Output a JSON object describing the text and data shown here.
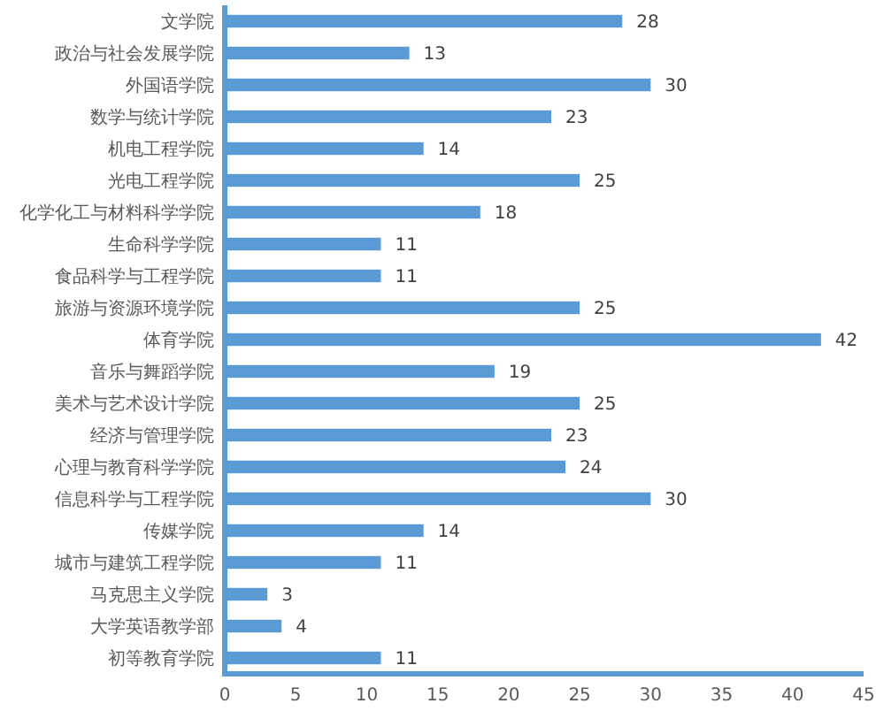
{
  "chart_data": {
    "type": "bar",
    "orientation": "horizontal",
    "categories": [
      "文学院",
      "政治与社会发展学院",
      "外国语学院",
      "数学与统计学院",
      "机电工程学院",
      "光电工程学院",
      "化学化工与材料科学学院",
      "生命科学学院",
      "食品科学与工程学院",
      "旅游与资源环境学院",
      "体育学院",
      "音乐与舞蹈学院",
      "美术与艺术设计学院",
      "经济与管理学院",
      "心理与教育科学学院",
      "信息科学与工程学院",
      "传媒学院",
      "城市与建筑工程学院",
      "马克思主义学院",
      "大学英语教学部",
      "初等教育学院"
    ],
    "values": [
      28,
      13,
      30,
      23,
      14,
      25,
      18,
      11,
      11,
      25,
      42,
      19,
      25,
      23,
      24,
      30,
      14,
      11,
      3,
      4,
      11
    ],
    "color": "#5b9bd5",
    "xlim": [
      0,
      45
    ],
    "xticks": [
      0,
      5,
      10,
      15,
      20,
      25,
      30,
      35,
      40,
      45
    ],
    "data_labels": true
  }
}
